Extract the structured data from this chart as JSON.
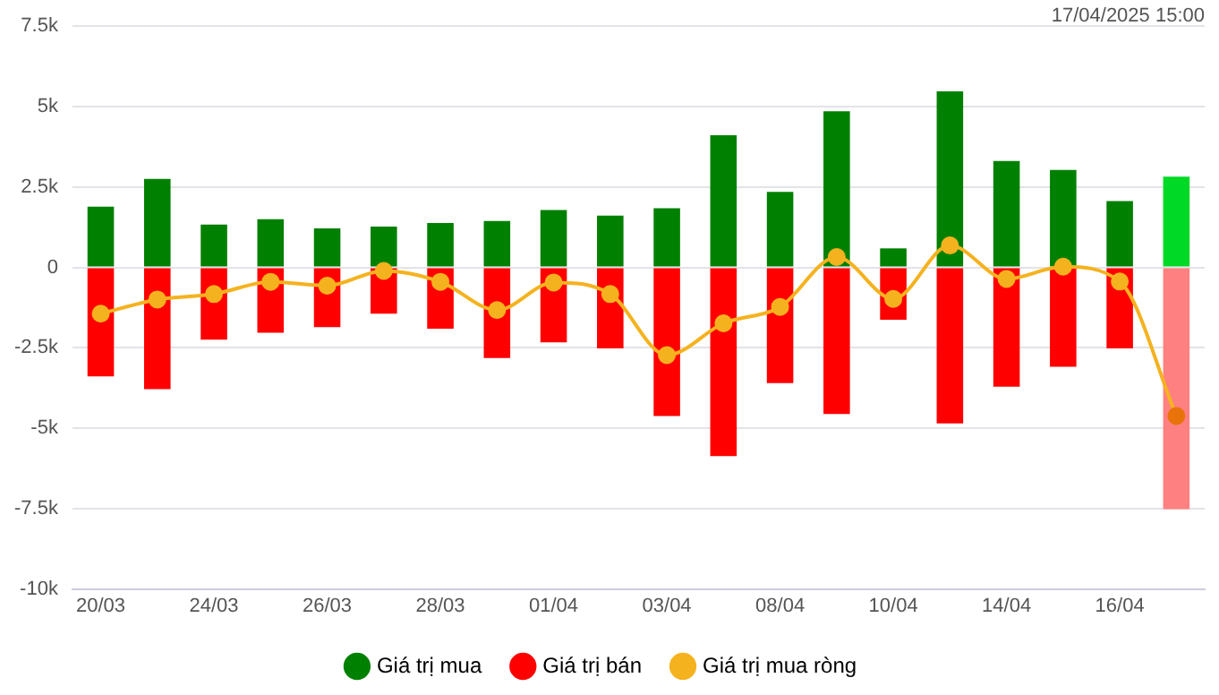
{
  "chart_data": {
    "type": "bar",
    "stacked": true,
    "categories": [
      "20/03",
      null,
      "24/03",
      null,
      "26/03",
      null,
      "28/03",
      null,
      "01/04",
      null,
      "03/04",
      null,
      "08/04",
      null,
      "10/04",
      null,
      "14/04",
      null,
      "16/04",
      null
    ],
    "series": [
      {
        "name": "Giá trị mua",
        "color": "#008000",
        "colors": [
          "#008000",
          "#008000",
          "#008000",
          "#008000",
          "#008000",
          "#008000",
          "#008000",
          "#008000",
          "#008000",
          "#008000",
          "#008000",
          "#008000",
          "#008000",
          "#008000",
          "#008000",
          "#008000",
          "#008000",
          "#008000",
          "#008000",
          "#00d926"
        ],
        "values": [
          1890,
          2750,
          1330,
          1500,
          1210,
          1270,
          1380,
          1440,
          1780,
          1610,
          1840,
          4110,
          2350,
          4850,
          590,
          5470,
          3310,
          3030,
          2060,
          2820
        ]
      },
      {
        "name": "Giá trị bán",
        "color": "#ff0000",
        "colors": [
          "#ff0000",
          "#ff0000",
          "#ff0000",
          "#ff0000",
          "#ff0000",
          "#ff0000",
          "#ff0000",
          "#ff0000",
          "#ff0000",
          "#ff0000",
          "#ff0000",
          "#ff0000",
          "#ff0000",
          "#ff0000",
          "#ff0000",
          "#ff0000",
          "#ff0000",
          "#ff0000",
          "#ff0000",
          "#ff8080"
        ],
        "values": [
          -3390,
          -3790,
          -2250,
          -2030,
          -1860,
          -1440,
          -1910,
          -2820,
          -2330,
          -2520,
          -4620,
          -5870,
          -3600,
          -4560,
          -1630,
          -4850,
          -3710,
          -3090,
          -2520,
          -7520
        ]
      },
      {
        "name": "Giá trị mua ròng",
        "type": "line",
        "color": "#f5b21f",
        "colors": [
          "#f5b21f",
          "#f5b21f",
          "#f5b21f",
          "#f5b21f",
          "#f5b21f",
          "#f5b21f",
          "#f5b21f",
          "#f5b21f",
          "#f5b21f",
          "#f5b21f",
          "#f5b21f",
          "#f5b21f",
          "#f5b21f",
          "#f5b21f",
          "#f5b21f",
          "#f5b21f",
          "#f5b21f",
          "#f5b21f",
          "#f5b21f",
          "#e8730a"
        ],
        "values": [
          -1440,
          -1000,
          -830,
          -450,
          -570,
          -110,
          -450,
          -1330,
          -470,
          -830,
          -2730,
          -1740,
          -1230,
          320,
          -980,
          680,
          -360,
          20,
          -440,
          -4620
        ]
      }
    ],
    "ylim": [
      -10000,
      7500
    ],
    "yticks": [
      {
        "value": -10000,
        "label": "-10k"
      },
      {
        "value": -7500,
        "label": "-7.5k"
      },
      {
        "value": -5000,
        "label": "-5k"
      },
      {
        "value": -2500,
        "label": "-2.5k"
      },
      0,
      {
        "value": 2500,
        "label": "2.5k"
      },
      {
        "value": 5000,
        "label": "5k"
      },
      {
        "value": 7500,
        "label": "7.5k"
      }
    ],
    "grid": "y",
    "legend": "bottom",
    "marker": "circle",
    "annotations": [
      "17/04/2025 15:00"
    ]
  }
}
